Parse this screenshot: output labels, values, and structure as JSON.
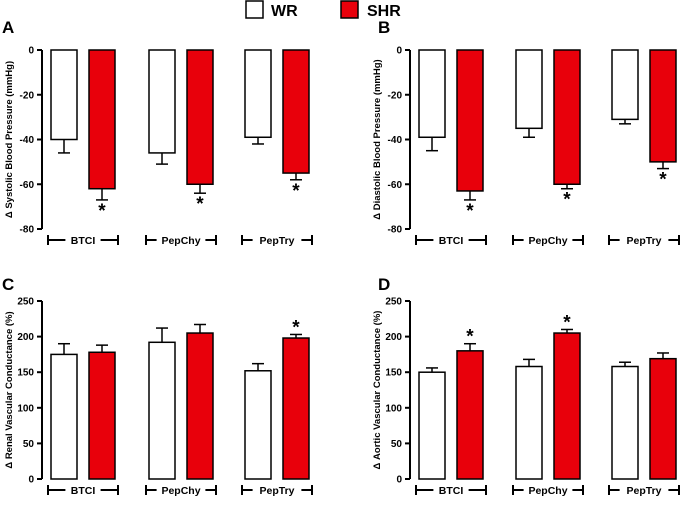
{
  "legend": {
    "items": [
      {
        "label": "WR",
        "color": "#ffffff"
      },
      {
        "label": "SHR",
        "color": "#e8000b"
      }
    ]
  },
  "chart_data": [
    {
      "panel": "A",
      "type": "bar",
      "ylabel": "Δ Systolic Blood Pressure (mmHg)",
      "categories": [
        "BTCI",
        "PepChy",
        "PepTry"
      ],
      "ylim": [
        -80,
        0
      ],
      "yticks": [
        0,
        -20,
        -40,
        -60,
        -80
      ],
      "series": [
        {
          "name": "WR",
          "color": "#ffffff",
          "values": [
            -40,
            -46,
            -39
          ],
          "errors": [
            6,
            5,
            3
          ]
        },
        {
          "name": "SHR",
          "color": "#e8000b",
          "values": [
            -62,
            -60,
            -55
          ],
          "errors": [
            5,
            4,
            3
          ]
        }
      ],
      "significance": [
        {
          "series": "SHR",
          "category": "BTCI",
          "marker": "*"
        },
        {
          "series": "SHR",
          "category": "PepChy",
          "marker": "*"
        },
        {
          "series": "SHR",
          "category": "PepTry",
          "marker": "*"
        }
      ]
    },
    {
      "panel": "B",
      "type": "bar",
      "ylabel": "Δ Diastolic Blood Pressure (mmHg)",
      "categories": [
        "BTCI",
        "PepChy",
        "PepTry"
      ],
      "ylim": [
        -80,
        0
      ],
      "yticks": [
        0,
        -20,
        -40,
        -60,
        -80
      ],
      "series": [
        {
          "name": "WR",
          "color": "#ffffff",
          "values": [
            -39,
            -35,
            -31
          ],
          "errors": [
            6,
            4,
            2
          ]
        },
        {
          "name": "SHR",
          "color": "#e8000b",
          "values": [
            -63,
            -60,
            -50
          ],
          "errors": [
            4,
            2,
            3
          ]
        }
      ],
      "significance": [
        {
          "series": "SHR",
          "category": "BTCI",
          "marker": "*"
        },
        {
          "series": "SHR",
          "category": "PepChy",
          "marker": "*"
        },
        {
          "series": "SHR",
          "category": "PepTry",
          "marker": "*"
        }
      ]
    },
    {
      "panel": "C",
      "type": "bar",
      "ylabel": "Δ Renal Vascular Conductance (%)",
      "categories": [
        "BTCI",
        "PepChy",
        "PepTry"
      ],
      "ylim": [
        0,
        250
      ],
      "yticks": [
        0,
        50,
        100,
        150,
        200,
        250
      ],
      "series": [
        {
          "name": "WR",
          "color": "#ffffff",
          "values": [
            175,
            192,
            152
          ],
          "errors": [
            15,
            20,
            10
          ]
        },
        {
          "name": "SHR",
          "color": "#e8000b",
          "values": [
            178,
            205,
            198
          ],
          "errors": [
            10,
            12,
            5
          ]
        }
      ],
      "significance": [
        {
          "series": "SHR",
          "category": "PepTry",
          "marker": "*"
        }
      ]
    },
    {
      "panel": "D",
      "type": "bar",
      "ylabel": "Δ Aortic Vascular Conductance (%)",
      "categories": [
        "BTCI",
        "PepChy",
        "PepTry"
      ],
      "ylim": [
        0,
        250
      ],
      "yticks": [
        0,
        50,
        100,
        150,
        200,
        250
      ],
      "series": [
        {
          "name": "WR",
          "color": "#ffffff",
          "values": [
            150,
            158,
            158
          ],
          "errors": [
            6,
            10,
            6
          ]
        },
        {
          "name": "SHR",
          "color": "#e8000b",
          "values": [
            180,
            205,
            169
          ],
          "errors": [
            10,
            5,
            8
          ]
        }
      ],
      "significance": [
        {
          "series": "SHR",
          "category": "BTCI",
          "marker": "*"
        },
        {
          "series": "SHR",
          "category": "PepChy",
          "marker": "*"
        }
      ]
    }
  ]
}
